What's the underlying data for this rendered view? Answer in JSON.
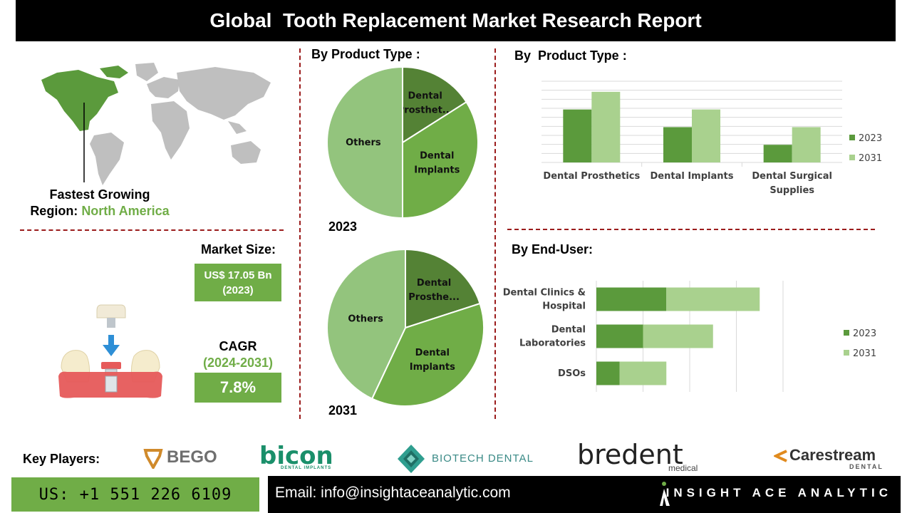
{
  "title": "Global  Tooth Replacement Market Research Report",
  "region": {
    "label_line1": "Fastest Growing",
    "label_line2_prefix": "Region: ",
    "label_line2_value": "North America"
  },
  "market_size": {
    "heading": "Market Size:",
    "value_line1": "US$ 17.05 Bn",
    "value_line2": "(2023)"
  },
  "cagr": {
    "heading": "CAGR",
    "period": "(2024-2031)",
    "value": "7.8%"
  },
  "pies": {
    "heading": "By Product Type :",
    "pie_2023": {
      "year": "2023",
      "slices": [
        {
          "label_line1": "Dental",
          "label_line2": "Prosthet...",
          "value": 16,
          "color": "#548235"
        },
        {
          "label_line1": "Dental",
          "label_line2": "Implants",
          "value": 34,
          "color": "#70ad47"
        },
        {
          "label_line1": "Others",
          "label_line2": "",
          "value": 50,
          "color": "#93c47d"
        }
      ]
    },
    "pie_2031": {
      "year": "2031",
      "slices": [
        {
          "label_line1": "Dental",
          "label_line2": "Prosthe...",
          "value": 20,
          "color": "#548235"
        },
        {
          "label_line1": "Dental",
          "label_line2": "Implants",
          "value": 37,
          "color": "#70ad47"
        },
        {
          "label_line1": "Others",
          "label_line2": "",
          "value": 43,
          "color": "#93c47d"
        }
      ]
    }
  },
  "bar_chart_heading": "By  Product Type :",
  "hbar_chart_heading": "By End-User:",
  "chart_data": [
    {
      "type": "bar",
      "categories": [
        "Dental Prosthetics",
        "Dental Implants",
        "Dental Surgical Supplies"
      ],
      "category_lines": [
        [
          "Dental Prosthetics"
        ],
        [
          "Dental Implants"
        ],
        [
          "Dental Surgical",
          "Supplies"
        ]
      ],
      "series": [
        {
          "name": "2023",
          "values": [
            3,
            2,
            1
          ],
          "color": "#5b9a3c"
        },
        {
          "name": "2031",
          "values": [
            4,
            3,
            2
          ],
          "color": "#a9d18e"
        }
      ],
      "ylim": [
        0,
        4.6
      ],
      "grid": true,
      "legend": "right"
    },
    {
      "type": "bar",
      "orientation": "horizontal",
      "stacked": true,
      "categories": [
        "Dental Clinics & Hospital",
        "Dental Laboratories",
        "DSOs"
      ],
      "category_lines": [
        [
          "Dental Clinics &",
          "Hospital"
        ],
        [
          "Dental",
          "Laboratories"
        ],
        [
          "DSOs"
        ]
      ],
      "series": [
        {
          "name": "2023",
          "values": [
            3,
            2,
            1
          ],
          "color": "#5b9a3c"
        },
        {
          "name": "2031",
          "values": [
            4,
            3,
            2
          ],
          "color": "#a9d18e"
        }
      ],
      "xlim": [
        0,
        8
      ],
      "grid": true,
      "legend": "right"
    },
    {
      "type": "pie",
      "title": "2023",
      "categories": [
        "Dental Prosthet...",
        "Dental Implants",
        "Others"
      ],
      "values": [
        16,
        34,
        50
      ]
    },
    {
      "type": "pie",
      "title": "2031",
      "categories": [
        "Dental Prosthe...",
        "Dental Implants",
        "Others"
      ],
      "values": [
        20,
        37,
        43
      ]
    }
  ],
  "key_players": {
    "label": "Key Players:",
    "logos": [
      {
        "name": "BEGO",
        "color": "#6f6f6f"
      },
      {
        "name": "bicon",
        "sub": "DENTAL IMPLANTS",
        "color": "#1a8f6a"
      },
      {
        "name": "BIOTECH DENTAL",
        "color": "#3a8a86"
      },
      {
        "name": "bredent",
        "sub": "medical",
        "color": "#222222"
      },
      {
        "name": "Carestream",
        "sub": "DENTAL",
        "color": "#333333"
      }
    ]
  },
  "footer": {
    "phone": "US: +1 551 226 6109",
    "email": "Email: info@insightaceanalytic.com",
    "brand": "INSIGHT ACE ANALYTIC"
  }
}
